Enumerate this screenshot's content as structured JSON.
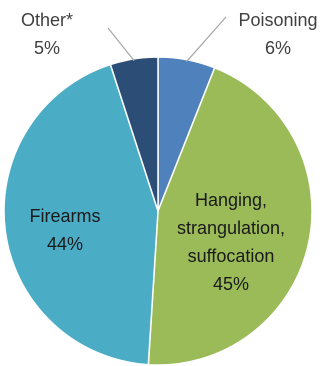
{
  "chart_data": {
    "type": "pie",
    "title": "",
    "slices": [
      {
        "label": "Poisoning",
        "value": 6,
        "value_label": "6%",
        "color": "#4f81bd"
      },
      {
        "label": "Hanging, strangulation, suffocation",
        "value": 45,
        "value_label": "45%",
        "color": "#9bbb59"
      },
      {
        "label": "Firearms",
        "value": 44,
        "value_label": "44%",
        "color": "#4bacc6"
      },
      {
        "label": "Other*",
        "value": 5,
        "value_label": "5%",
        "color": "#2c4d75"
      }
    ],
    "label_lines": [
      "Hanging,",
      "strangulation,",
      "suffocation"
    ],
    "legend": "none",
    "start_angle": "12 o'clock",
    "direction": "clockwise"
  }
}
